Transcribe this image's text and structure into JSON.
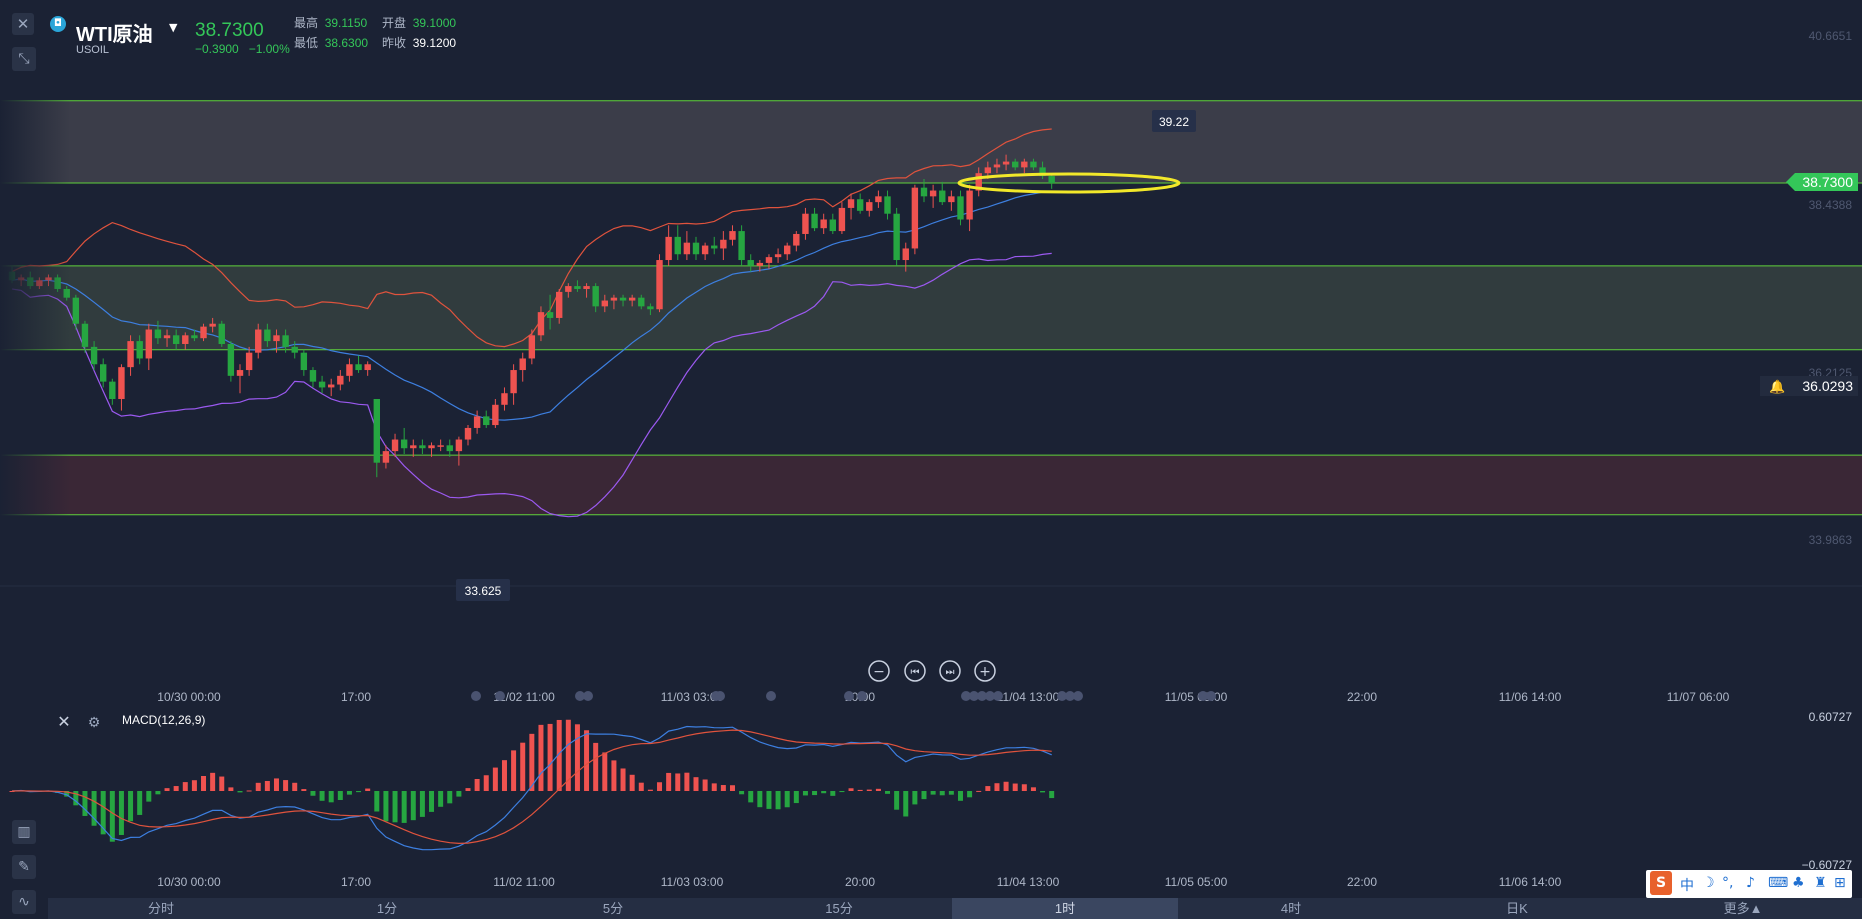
{
  "header": {
    "symbol_name": "WTI原油",
    "symbol_code": "USOIL",
    "last_price": "38.7300",
    "change": "−0.3900",
    "change_pct": "−1.00%",
    "quotes": {
      "high_label": "最高",
      "high": "39.1150",
      "open_label": "开盘",
      "open": "39.1000",
      "low_label": "最低",
      "low": "38.6300",
      "prev_label": "昨收",
      "prev_close": "39.1200"
    }
  },
  "price_axis": {
    "top": "40.6651",
    "upper": "38.4388",
    "mid": "36.2125",
    "lower": "33.9863",
    "current_tag": "38.7300",
    "alert_tag": "36.0293"
  },
  "annotations": {
    "peak": "39.22",
    "trough": "33.625"
  },
  "time_axis": [
    "10/30 00:00",
    "17:00",
    "11/02 11:00",
    "11/03 03:00",
    "20:00",
    "11/04 13:00",
    "11/05 05:00",
    "22:00",
    "11/06 14:00",
    "11/07 06:00"
  ],
  "macd_time_axis": [
    "10/30 00:00",
    "17:00",
    "11/02 11:00",
    "11/03 03:00",
    "20:00",
    "11/04 13:00",
    "11/05 05:00",
    "22:00",
    "11/06 14:00"
  ],
  "macd": {
    "label": "MACD(12,26,9)",
    "axis_top": "0.60727",
    "axis_bottom": "−0.60727"
  },
  "timeframes": [
    "分时",
    "1分",
    "5分",
    "15分",
    "1时",
    "4时",
    "日K",
    "更多▲"
  ],
  "active_timeframe": "1时",
  "ime_toolbar": [
    "S",
    "中",
    "☽",
    "°,",
    "♪",
    "⌨",
    "♣",
    "♜",
    "⊞"
  ],
  "colors": {
    "up": "#ef5350",
    "down": "#26a641",
    "boll_upper": "#e0533d",
    "boll_mid": "#3d7fe0",
    "boll_lower": "#9b59f0",
    "level_line": "#5fd13a",
    "zone_upper": "#3b3d49",
    "zone_mid": "#313c3e",
    "zone_lower": "#3a2736",
    "macd_dif": "#3d7fe0",
    "macd_dea": "#e0533d",
    "highlight_ellipse": "#f2e82a",
    "background": "#1b2234"
  },
  "chart_data": {
    "type": "candlestick",
    "series_note": "WTI原油 1时",
    "y_range": [
      32.6,
      41.2
    ],
    "levels": [
      40.15,
      38.73,
      37.3,
      35.85,
      34.03,
      33.0
    ],
    "candles": [
      [
        37.2,
        37.3,
        37.0,
        37.05
      ],
      [
        37.05,
        37.15,
        36.95,
        37.1
      ],
      [
        37.1,
        37.2,
        36.9,
        36.95
      ],
      [
        36.95,
        37.1,
        36.9,
        37.05
      ],
      [
        37.05,
        37.15,
        36.95,
        37.1
      ],
      [
        37.1,
        37.15,
        36.85,
        36.9
      ],
      [
        36.9,
        36.95,
        36.7,
        36.75
      ],
      [
        36.75,
        36.8,
        36.2,
        36.3
      ],
      [
        36.3,
        36.35,
        35.8,
        35.9
      ],
      [
        35.9,
        36.0,
        35.5,
        35.6
      ],
      [
        35.6,
        35.7,
        35.2,
        35.3
      ],
      [
        35.3,
        35.35,
        34.9,
        35.0
      ],
      [
        35.0,
        35.6,
        34.8,
        35.55
      ],
      [
        35.55,
        36.1,
        35.4,
        36.0
      ],
      [
        36.0,
        36.1,
        35.6,
        35.7
      ],
      [
        35.7,
        36.3,
        35.5,
        36.2
      ],
      [
        36.2,
        36.35,
        35.95,
        36.05
      ],
      [
        36.05,
        36.2,
        35.9,
        36.1
      ],
      [
        36.1,
        36.2,
        35.85,
        35.95
      ],
      [
        35.95,
        36.15,
        35.85,
        36.1
      ],
      [
        36.1,
        36.2,
        36.0,
        36.05
      ],
      [
        36.05,
        36.3,
        36.0,
        36.25
      ],
      [
        36.25,
        36.4,
        36.15,
        36.3
      ],
      [
        36.3,
        36.35,
        35.9,
        35.95
      ],
      [
        35.95,
        36.0,
        35.3,
        35.4
      ],
      [
        35.4,
        35.6,
        35.1,
        35.5
      ],
      [
        35.5,
        35.9,
        35.4,
        35.8
      ],
      [
        35.8,
        36.3,
        35.7,
        36.2
      ],
      [
        36.2,
        36.3,
        35.9,
        36.0
      ],
      [
        36.0,
        36.2,
        35.8,
        36.1
      ],
      [
        36.1,
        36.2,
        35.8,
        35.9
      ],
      [
        35.9,
        36.0,
        35.7,
        35.8
      ],
      [
        35.8,
        35.85,
        35.4,
        35.5
      ],
      [
        35.5,
        35.55,
        35.2,
        35.3
      ],
      [
        35.3,
        35.4,
        35.1,
        35.2
      ],
      [
        35.2,
        35.35,
        35.05,
        35.25
      ],
      [
        35.25,
        35.5,
        35.15,
        35.4
      ],
      [
        35.4,
        35.7,
        35.3,
        35.6
      ],
      [
        35.6,
        35.75,
        35.45,
        35.5
      ],
      [
        35.5,
        35.65,
        35.4,
        35.6
      ],
      [
        35.0,
        35.0,
        33.65,
        33.9
      ],
      [
        33.9,
        34.2,
        33.8,
        34.1
      ],
      [
        34.1,
        34.4,
        34.0,
        34.3
      ],
      [
        34.3,
        34.5,
        34.05,
        34.15
      ],
      [
        34.15,
        34.3,
        34.0,
        34.2
      ],
      [
        34.2,
        34.3,
        34.05,
        34.15
      ],
      [
        34.15,
        34.25,
        34.0,
        34.2
      ],
      [
        34.2,
        34.3,
        34.1,
        34.2
      ],
      [
        34.2,
        34.3,
        34.0,
        34.1
      ],
      [
        34.1,
        34.35,
        33.85,
        34.3
      ],
      [
        34.3,
        34.55,
        34.2,
        34.5
      ],
      [
        34.5,
        34.8,
        34.4,
        34.7
      ],
      [
        34.7,
        34.8,
        34.5,
        34.55
      ],
      [
        34.55,
        35.0,
        34.5,
        34.9
      ],
      [
        34.9,
        35.2,
        34.8,
        35.1
      ],
      [
        35.1,
        35.6,
        34.9,
        35.5
      ],
      [
        35.5,
        35.8,
        35.3,
        35.7
      ],
      [
        35.7,
        36.2,
        35.6,
        36.1
      ],
      [
        36.1,
        36.6,
        36.0,
        36.5
      ],
      [
        36.5,
        36.8,
        36.2,
        36.4
      ],
      [
        36.4,
        36.9,
        36.3,
        36.85
      ],
      [
        36.85,
        37.0,
        36.75,
        36.95
      ],
      [
        36.95,
        37.05,
        36.85,
        36.9
      ],
      [
        36.9,
        37.0,
        36.75,
        36.95
      ],
      [
        36.95,
        37.0,
        36.5,
        36.6
      ],
      [
        36.6,
        36.8,
        36.5,
        36.7
      ],
      [
        36.7,
        36.8,
        36.55,
        36.75
      ],
      [
        36.75,
        36.8,
        36.6,
        36.7
      ],
      [
        36.7,
        36.8,
        36.6,
        36.75
      ],
      [
        36.75,
        36.8,
        36.55,
        36.6
      ],
      [
        36.6,
        36.65,
        36.45,
        36.55
      ],
      [
        36.55,
        37.5,
        36.5,
        37.4
      ],
      [
        37.4,
        38.0,
        37.3,
        37.8
      ],
      [
        37.8,
        38.0,
        37.4,
        37.5
      ],
      [
        37.5,
        37.9,
        37.4,
        37.7
      ],
      [
        37.7,
        37.8,
        37.4,
        37.5
      ],
      [
        37.5,
        37.7,
        37.4,
        37.65
      ],
      [
        37.65,
        37.8,
        37.5,
        37.6
      ],
      [
        37.6,
        37.9,
        37.4,
        37.75
      ],
      [
        37.75,
        38.0,
        37.65,
        37.9
      ],
      [
        37.9,
        38.0,
        37.3,
        37.4
      ],
      [
        37.4,
        37.5,
        37.2,
        37.3
      ],
      [
        37.3,
        37.4,
        37.2,
        37.35
      ],
      [
        37.35,
        37.5,
        37.25,
        37.45
      ],
      [
        37.45,
        37.6,
        37.35,
        37.5
      ],
      [
        37.5,
        37.7,
        37.4,
        37.65
      ],
      [
        37.65,
        37.9,
        37.55,
        37.85
      ],
      [
        37.85,
        38.3,
        37.75,
        38.2
      ],
      [
        38.2,
        38.3,
        37.9,
        37.95
      ],
      [
        37.95,
        38.2,
        37.85,
        38.1
      ],
      [
        38.1,
        38.2,
        37.85,
        37.9
      ],
      [
        37.9,
        38.4,
        37.85,
        38.3
      ],
      [
        38.3,
        38.55,
        38.1,
        38.45
      ],
      [
        38.45,
        38.55,
        38.2,
        38.25
      ],
      [
        38.25,
        38.45,
        38.15,
        38.4
      ],
      [
        38.4,
        38.6,
        38.3,
        38.5
      ],
      [
        38.5,
        38.6,
        38.1,
        38.2
      ],
      [
        38.2,
        38.3,
        37.3,
        37.4
      ],
      [
        37.4,
        37.7,
        37.2,
        37.6
      ],
      [
        37.6,
        38.7,
        37.5,
        38.65
      ],
      [
        38.65,
        38.8,
        38.4,
        38.5
      ],
      [
        38.5,
        38.7,
        38.3,
        38.6
      ],
      [
        38.6,
        38.75,
        38.35,
        38.4
      ],
      [
        38.4,
        38.6,
        38.25,
        38.5
      ],
      [
        38.5,
        38.6,
        38.0,
        38.1
      ],
      [
        38.1,
        38.7,
        37.9,
        38.6
      ],
      [
        38.6,
        39.0,
        38.5,
        38.9
      ],
      [
        38.9,
        39.1,
        38.8,
        39.0
      ],
      [
        39.0,
        39.15,
        38.9,
        39.05
      ],
      [
        39.05,
        39.22,
        38.95,
        39.1
      ],
      [
        39.1,
        39.15,
        38.95,
        39.0
      ],
      [
        39.0,
        39.15,
        38.9,
        39.1
      ],
      [
        39.1,
        39.15,
        38.95,
        39.0
      ],
      [
        39.0,
        39.1,
        38.8,
        38.85
      ],
      [
        38.85,
        38.9,
        38.63,
        38.73
      ]
    ]
  }
}
